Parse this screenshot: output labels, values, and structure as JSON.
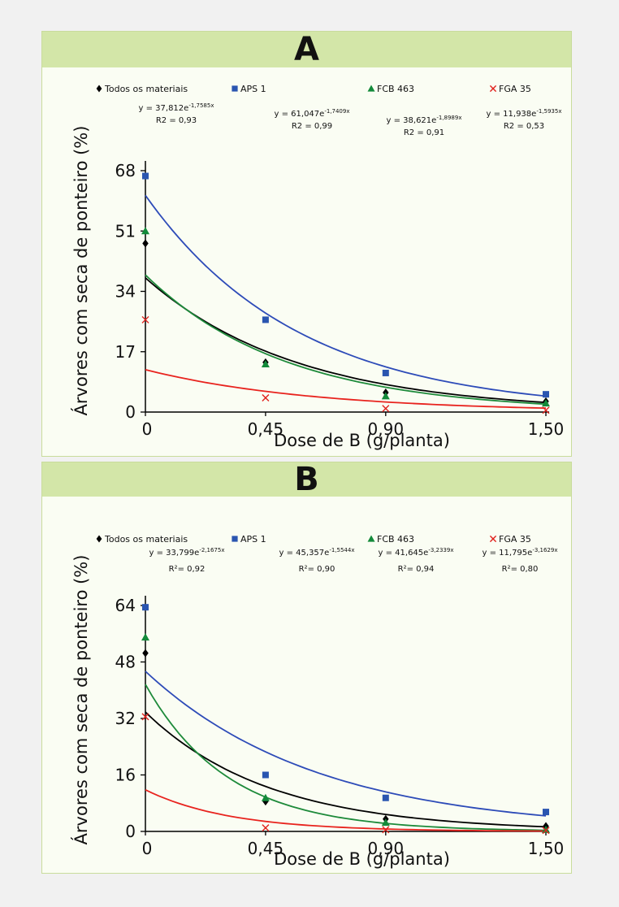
{
  "colors": {
    "background": "#f1f1f1",
    "panel_bg": "#fafdf3",
    "panel_header": "#d3e6a8",
    "panel_border": "#c9dc9c",
    "todos": "#000000",
    "aps": "#2a55b0",
    "fcb": "#138a3a",
    "fga": "#e0201c",
    "aps_curve": "#2d4bb8",
    "fcb_curve": "#1d8a3a",
    "fga_curve": "#e8231e"
  },
  "chart_data": [
    {
      "panel_label": "A",
      "type": "scatter",
      "ylabel": "Árvores com seca de ponteiro (%)",
      "xlabel": "Dose de B (g/planta)",
      "x": [
        0,
        0.45,
        0.9,
        1.5
      ],
      "x_tick_labels": [
        "0",
        "0,45",
        "0,90",
        "1,50"
      ],
      "y_ticks": [
        0,
        17,
        34,
        51,
        68
      ],
      "y_tick_labels": [
        "0",
        "17",
        "34",
        "51",
        "68"
      ],
      "ylim": [
        0,
        68
      ],
      "xlim": [
        0,
        1.5
      ],
      "legend_position": "top",
      "series": [
        {
          "name": "Todos os materiais",
          "marker": "diamond",
          "color": "#000000",
          "curve_color": "#000000",
          "values": [
            47.5,
            14,
            5.5,
            3
          ],
          "fit": {
            "a": 37.812,
            "b": 1.7585
          },
          "eq_prefix": "y = 37,812e",
          "eq_exp": "-1,7585x",
          "r2_label": "R2 = 0,93"
        },
        {
          "name": "APS 1",
          "marker": "square",
          "color": "#2a55b0",
          "curve_color": "#2d4bb8",
          "values": [
            66.5,
            26,
            11,
            5
          ],
          "fit": {
            "a": 61.047,
            "b": 1.7409
          },
          "eq_prefix": "y = 61,047e",
          "eq_exp": "-1,7409x",
          "r2_label": "R2 = 0,99"
        },
        {
          "name": "FCB 463",
          "marker": "triangle",
          "color": "#138a3a",
          "curve_color": "#1d8a3a",
          "values": [
            51,
            13.5,
            4.5,
            2.5
          ],
          "fit": {
            "a": 38.621,
            "b": 1.8989
          },
          "eq_prefix": "y = 38,621e",
          "eq_exp": "-1,8989x",
          "r2_label": "R2 = 0,91"
        },
        {
          "name": "FGA 35",
          "marker": "x",
          "color": "#e0201c",
          "curve_color": "#e8231e",
          "values": [
            26,
            4,
            1,
            0.5
          ],
          "fit": {
            "a": 11.938,
            "b": 1.5935
          },
          "eq_prefix": "y = 11,938e",
          "eq_exp": "-1,5935x",
          "r2_label": "R2 = 0,53"
        }
      ]
    },
    {
      "panel_label": "B",
      "type": "scatter",
      "ylabel": "Árvores com seca de ponteiro (%)",
      "xlabel": "Dose de B (g/planta)",
      "x": [
        0,
        0.45,
        0.9,
        1.5
      ],
      "x_tick_labels": [
        "0",
        "0,45",
        "0,90",
        "1,50"
      ],
      "y_ticks": [
        0,
        16,
        32,
        48,
        64
      ],
      "y_tick_labels": [
        "0",
        "16",
        "32",
        "48",
        "64"
      ],
      "ylim": [
        0,
        64
      ],
      "xlim": [
        0,
        1.5
      ],
      "legend_position": "top",
      "series": [
        {
          "name": "Todos os materiais",
          "marker": "diamond",
          "color": "#000000",
          "curve_color": "#000000",
          "values": [
            50.5,
            8.5,
            3.5,
            1.5
          ],
          "fit": {
            "a": 33.799,
            "b": 2.1675
          },
          "eq_prefix": "y = 33,799e",
          "eq_exp": "-2,1675x",
          "r2_label": "R²= 0,92"
        },
        {
          "name": "APS 1",
          "marker": "square",
          "color": "#2a55b0",
          "curve_color": "#2d4bb8",
          "values": [
            63.5,
            16,
            9.5,
            5.5
          ],
          "fit": {
            "a": 45.357,
            "b": 1.5544
          },
          "eq_prefix": "y = 45,357e",
          "eq_exp": "-1,5544x",
          "r2_label": "R²= 0,90"
        },
        {
          "name": "FCB 463",
          "marker": "triangle",
          "color": "#138a3a",
          "curve_color": "#1d8a3a",
          "values": [
            55,
            9.5,
            2.5,
            0.5
          ],
          "fit": {
            "a": 41.645,
            "b": 3.2339
          },
          "eq_prefix": "y = 41,645e",
          "eq_exp": "-3,2339x",
          "r2_label": "R²= 0,94"
        },
        {
          "name": "FGA 35",
          "marker": "x",
          "color": "#e0201c",
          "curve_color": "#e8231e",
          "values": [
            32.5,
            1,
            0.5,
            0.3
          ],
          "fit": {
            "a": 11.795,
            "b": 3.1629
          },
          "eq_prefix": "y = 11,795e",
          "eq_exp": "-3,1629x",
          "r2_label": "R²= 0,80"
        }
      ]
    }
  ]
}
